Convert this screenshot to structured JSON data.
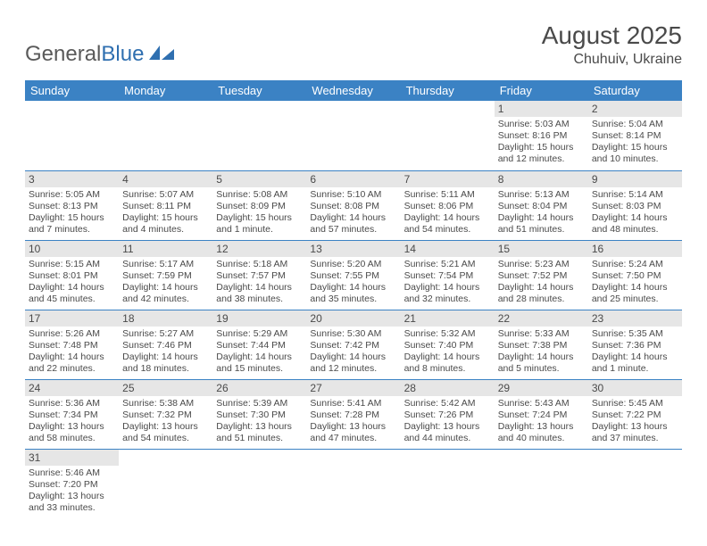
{
  "brand": {
    "part1": "General",
    "part2": "Blue"
  },
  "title": "August 2025",
  "location": "Chuhuiv, Ukraine",
  "colors": {
    "header_bg": "#3b82c4",
    "header_fg": "#ffffff",
    "daynum_bg": "#e6e6e6",
    "border": "#3b82c4",
    "text": "#4a4a4a",
    "brand_blue": "#2f6fb0"
  },
  "weekdays": [
    "Sunday",
    "Monday",
    "Tuesday",
    "Wednesday",
    "Thursday",
    "Friday",
    "Saturday"
  ],
  "weeks": [
    [
      null,
      null,
      null,
      null,
      null,
      {
        "n": "1",
        "sr": "Sunrise: 5:03 AM",
        "ss": "Sunset: 8:16 PM",
        "d1": "Daylight: 15 hours",
        "d2": "and 12 minutes."
      },
      {
        "n": "2",
        "sr": "Sunrise: 5:04 AM",
        "ss": "Sunset: 8:14 PM",
        "d1": "Daylight: 15 hours",
        "d2": "and 10 minutes."
      }
    ],
    [
      {
        "n": "3",
        "sr": "Sunrise: 5:05 AM",
        "ss": "Sunset: 8:13 PM",
        "d1": "Daylight: 15 hours",
        "d2": "and 7 minutes."
      },
      {
        "n": "4",
        "sr": "Sunrise: 5:07 AM",
        "ss": "Sunset: 8:11 PM",
        "d1": "Daylight: 15 hours",
        "d2": "and 4 minutes."
      },
      {
        "n": "5",
        "sr": "Sunrise: 5:08 AM",
        "ss": "Sunset: 8:09 PM",
        "d1": "Daylight: 15 hours",
        "d2": "and 1 minute."
      },
      {
        "n": "6",
        "sr": "Sunrise: 5:10 AM",
        "ss": "Sunset: 8:08 PM",
        "d1": "Daylight: 14 hours",
        "d2": "and 57 minutes."
      },
      {
        "n": "7",
        "sr": "Sunrise: 5:11 AM",
        "ss": "Sunset: 8:06 PM",
        "d1": "Daylight: 14 hours",
        "d2": "and 54 minutes."
      },
      {
        "n": "8",
        "sr": "Sunrise: 5:13 AM",
        "ss": "Sunset: 8:04 PM",
        "d1": "Daylight: 14 hours",
        "d2": "and 51 minutes."
      },
      {
        "n": "9",
        "sr": "Sunrise: 5:14 AM",
        "ss": "Sunset: 8:03 PM",
        "d1": "Daylight: 14 hours",
        "d2": "and 48 minutes."
      }
    ],
    [
      {
        "n": "10",
        "sr": "Sunrise: 5:15 AM",
        "ss": "Sunset: 8:01 PM",
        "d1": "Daylight: 14 hours",
        "d2": "and 45 minutes."
      },
      {
        "n": "11",
        "sr": "Sunrise: 5:17 AM",
        "ss": "Sunset: 7:59 PM",
        "d1": "Daylight: 14 hours",
        "d2": "and 42 minutes."
      },
      {
        "n": "12",
        "sr": "Sunrise: 5:18 AM",
        "ss": "Sunset: 7:57 PM",
        "d1": "Daylight: 14 hours",
        "d2": "and 38 minutes."
      },
      {
        "n": "13",
        "sr": "Sunrise: 5:20 AM",
        "ss": "Sunset: 7:55 PM",
        "d1": "Daylight: 14 hours",
        "d2": "and 35 minutes."
      },
      {
        "n": "14",
        "sr": "Sunrise: 5:21 AM",
        "ss": "Sunset: 7:54 PM",
        "d1": "Daylight: 14 hours",
        "d2": "and 32 minutes."
      },
      {
        "n": "15",
        "sr": "Sunrise: 5:23 AM",
        "ss": "Sunset: 7:52 PM",
        "d1": "Daylight: 14 hours",
        "d2": "and 28 minutes."
      },
      {
        "n": "16",
        "sr": "Sunrise: 5:24 AM",
        "ss": "Sunset: 7:50 PM",
        "d1": "Daylight: 14 hours",
        "d2": "and 25 minutes."
      }
    ],
    [
      {
        "n": "17",
        "sr": "Sunrise: 5:26 AM",
        "ss": "Sunset: 7:48 PM",
        "d1": "Daylight: 14 hours",
        "d2": "and 22 minutes."
      },
      {
        "n": "18",
        "sr": "Sunrise: 5:27 AM",
        "ss": "Sunset: 7:46 PM",
        "d1": "Daylight: 14 hours",
        "d2": "and 18 minutes."
      },
      {
        "n": "19",
        "sr": "Sunrise: 5:29 AM",
        "ss": "Sunset: 7:44 PM",
        "d1": "Daylight: 14 hours",
        "d2": "and 15 minutes."
      },
      {
        "n": "20",
        "sr": "Sunrise: 5:30 AM",
        "ss": "Sunset: 7:42 PM",
        "d1": "Daylight: 14 hours",
        "d2": "and 12 minutes."
      },
      {
        "n": "21",
        "sr": "Sunrise: 5:32 AM",
        "ss": "Sunset: 7:40 PM",
        "d1": "Daylight: 14 hours",
        "d2": "and 8 minutes."
      },
      {
        "n": "22",
        "sr": "Sunrise: 5:33 AM",
        "ss": "Sunset: 7:38 PM",
        "d1": "Daylight: 14 hours",
        "d2": "and 5 minutes."
      },
      {
        "n": "23",
        "sr": "Sunrise: 5:35 AM",
        "ss": "Sunset: 7:36 PM",
        "d1": "Daylight: 14 hours",
        "d2": "and 1 minute."
      }
    ],
    [
      {
        "n": "24",
        "sr": "Sunrise: 5:36 AM",
        "ss": "Sunset: 7:34 PM",
        "d1": "Daylight: 13 hours",
        "d2": "and 58 minutes."
      },
      {
        "n": "25",
        "sr": "Sunrise: 5:38 AM",
        "ss": "Sunset: 7:32 PM",
        "d1": "Daylight: 13 hours",
        "d2": "and 54 minutes."
      },
      {
        "n": "26",
        "sr": "Sunrise: 5:39 AM",
        "ss": "Sunset: 7:30 PM",
        "d1": "Daylight: 13 hours",
        "d2": "and 51 minutes."
      },
      {
        "n": "27",
        "sr": "Sunrise: 5:41 AM",
        "ss": "Sunset: 7:28 PM",
        "d1": "Daylight: 13 hours",
        "d2": "and 47 minutes."
      },
      {
        "n": "28",
        "sr": "Sunrise: 5:42 AM",
        "ss": "Sunset: 7:26 PM",
        "d1": "Daylight: 13 hours",
        "d2": "and 44 minutes."
      },
      {
        "n": "29",
        "sr": "Sunrise: 5:43 AM",
        "ss": "Sunset: 7:24 PM",
        "d1": "Daylight: 13 hours",
        "d2": "and 40 minutes."
      },
      {
        "n": "30",
        "sr": "Sunrise: 5:45 AM",
        "ss": "Sunset: 7:22 PM",
        "d1": "Daylight: 13 hours",
        "d2": "and 37 minutes."
      }
    ],
    [
      {
        "n": "31",
        "sr": "Sunrise: 5:46 AM",
        "ss": "Sunset: 7:20 PM",
        "d1": "Daylight: 13 hours",
        "d2": "and 33 minutes."
      },
      null,
      null,
      null,
      null,
      null,
      null
    ]
  ]
}
